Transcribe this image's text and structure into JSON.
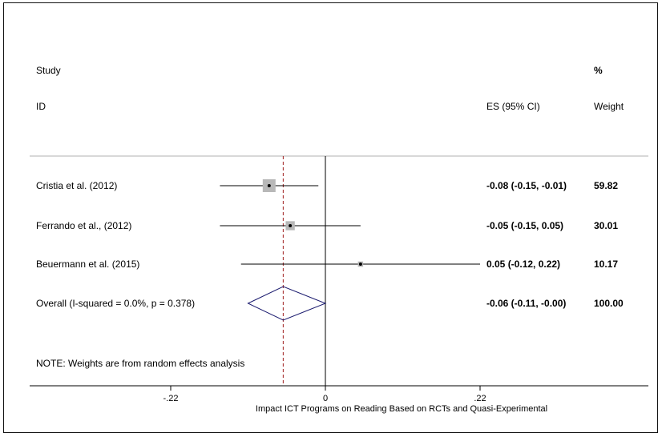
{
  "chart_data": {
    "type": "forest",
    "header": {
      "study_line1": "Study",
      "study_line2": "ID",
      "es_label": "ES (95% CI)",
      "weight_line1": "%",
      "weight_line2": "Weight"
    },
    "studies": [
      {
        "id": "Cristia et al. (2012)",
        "es": -0.08,
        "ci": [
          -0.15,
          -0.01
        ],
        "es_text": "-0.08 (-0.15, -0.01)",
        "weight": 59.82,
        "weight_text": "59.82"
      },
      {
        "id": "Ferrando et al., (2012)",
        "es": -0.05,
        "ci": [
          -0.15,
          0.05
        ],
        "es_text": "-0.05 (-0.15, 0.05)",
        "weight": 30.01,
        "weight_text": "30.01"
      },
      {
        "id": "Beuermann et al. (2015)",
        "es": 0.05,
        "ci": [
          -0.12,
          0.22
        ],
        "es_text": "0.05 (-0.12, 0.22)",
        "weight": 10.17,
        "weight_text": "10.17"
      }
    ],
    "overall": {
      "label": "Overall  (I-squared = 0.0%, p = 0.378)",
      "es": -0.06,
      "ci": [
        -0.11,
        -0.0
      ],
      "es_text": "-0.06 (-0.11, -0.00)",
      "weight_text": "100.00"
    },
    "note": "NOTE: Weights are from random effects analysis",
    "x_ticks": [
      -0.22,
      0,
      0.22
    ],
    "x_tick_labels": [
      "-.22",
      "0",
      ".22"
    ],
    "xlabel": "Impact ICT Programs on Reading Based on RCTs and Quasi-Experimental",
    "reference_line": 0,
    "colors": {
      "box": "#b8b8b8",
      "ci_line": "#000000",
      "overall_line": "#a02020",
      "diamond": "#1a1a6e",
      "axis": "#000000"
    }
  }
}
